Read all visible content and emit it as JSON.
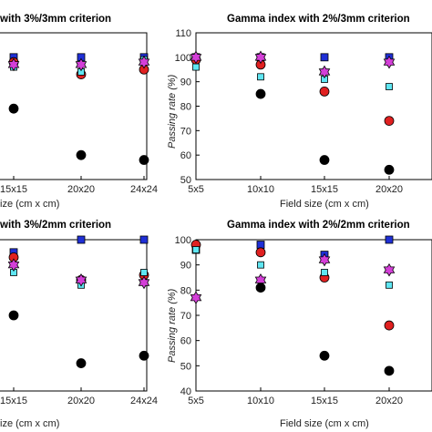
{
  "chart_data": [
    {
      "type": "scatter",
      "title": "with 3%/3mm criterion",
      "xlabel": "ize (cm x cm)",
      "ylabel": "",
      "ylim": [
        50,
        110
      ],
      "categories": [
        "15x15",
        "20x20",
        "24x24"
      ],
      "series": [
        {
          "color": "#1f2fd6",
          "marker": "square",
          "values": [
            100,
            100,
            100
          ]
        },
        {
          "color": "#e02020",
          "marker": "circle",
          "values": [
            98,
            93,
            95
          ]
        },
        {
          "color": "#5fe6f2",
          "marker": "square-small",
          "values": [
            96,
            94,
            99
          ]
        },
        {
          "color": "#d43fd8",
          "marker": "hexagram",
          "values": [
            97,
            97,
            98
          ]
        },
        {
          "color": "#000000",
          "marker": "circle",
          "values": [
            79,
            60,
            58
          ]
        }
      ]
    },
    {
      "type": "scatter",
      "title": "Gamma index with 2%/3mm criterion",
      "xlabel": "Field size (cm x cm)",
      "ylabel": "Passing rate (%)",
      "ylim": [
        50,
        110
      ],
      "yticks": [
        50,
        60,
        70,
        80,
        90,
        100,
        110
      ],
      "categories": [
        "5x5",
        "10x10",
        "15x15",
        "20x20"
      ],
      "series": [
        {
          "color": "#1f2fd6",
          "marker": "square",
          "values": [
            100,
            100,
            100,
            100
          ]
        },
        {
          "color": "#e02020",
          "marker": "circle",
          "values": [
            99,
            97,
            86,
            74
          ]
        },
        {
          "color": "#5fe6f2",
          "marker": "square-small",
          "values": [
            96,
            92,
            91,
            88
          ]
        },
        {
          "color": "#d43fd8",
          "marker": "hexagram",
          "values": [
            100,
            100,
            94,
            98
          ]
        },
        {
          "color": "#000000",
          "marker": "circle",
          "values": [
            null,
            85,
            58,
            54
          ]
        }
      ]
    },
    {
      "type": "scatter",
      "title": "with 3%/2mm criterion",
      "xlabel": "ize (cm x cm)",
      "ylabel": "",
      "ylim": [
        40,
        100
      ],
      "categories": [
        "15x15",
        "20x20",
        "24x24"
      ],
      "series": [
        {
          "color": "#1f2fd6",
          "marker": "square",
          "values": [
            95,
            100,
            100
          ]
        },
        {
          "color": "#e02020",
          "marker": "circle",
          "values": [
            93,
            84,
            86
          ]
        },
        {
          "color": "#5fe6f2",
          "marker": "square-small",
          "values": [
            87,
            82,
            87
          ]
        },
        {
          "color": "#d43fd8",
          "marker": "hexagram",
          "values": [
            90,
            84,
            83
          ]
        },
        {
          "color": "#000000",
          "marker": "circle",
          "values": [
            70,
            51,
            54
          ]
        }
      ]
    },
    {
      "type": "scatter",
      "title": "Gamma index with 2%/2mm criterion",
      "xlabel": "Field size (cm x cm)",
      "ylabel": "Passing rate (%)",
      "ylim": [
        40,
        100
      ],
      "yticks": [
        40,
        50,
        60,
        70,
        80,
        90,
        100
      ],
      "categories": [
        "5x5",
        "10x10",
        "15x15",
        "20x20"
      ],
      "series": [
        {
          "color": "#1f2fd6",
          "marker": "square",
          "values": [
            96,
            98,
            94,
            100
          ]
        },
        {
          "color": "#e02020",
          "marker": "circle",
          "values": [
            98,
            95,
            85,
            66
          ]
        },
        {
          "color": "#5fe6f2",
          "marker": "square-small",
          "values": [
            96,
            90,
            87,
            82
          ]
        },
        {
          "color": "#d43fd8",
          "marker": "hexagram",
          "values": [
            77,
            84,
            92,
            88
          ]
        },
        {
          "color": "#000000",
          "marker": "circle",
          "values": [
            null,
            81,
            54,
            48
          ]
        }
      ]
    }
  ]
}
